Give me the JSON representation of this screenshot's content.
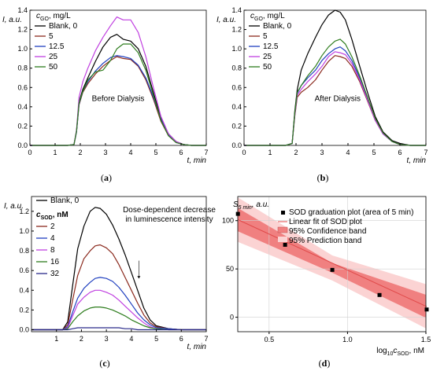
{
  "chart_data": [
    {
      "panel": "(a)",
      "type": "line",
      "xlabel": "t, min",
      "ylabel": "I, a.u.",
      "xlim": [
        0,
        7
      ],
      "ylim": [
        0,
        1.4
      ],
      "xticks": [
        0,
        1,
        2,
        3,
        4,
        5,
        6,
        7
      ],
      "yticks": [
        0.0,
        0.2,
        0.4,
        0.6,
        0.8,
        1.0,
        1.2,
        1.4
      ],
      "xtick_labels": [
        "0",
        "1",
        "2",
        "3",
        "4",
        "5",
        "6",
        "7"
      ],
      "ytick_labels": [
        "0.0",
        "0.2",
        "0.4",
        "0.6",
        "0.8",
        "1.0",
        "1.2",
        "1.4"
      ],
      "legend_title": "cGO, mg/L",
      "legend_position": "top-left",
      "annotation": "Before Dialysis",
      "annotation_color": "#d62728",
      "grid": false,
      "series": [
        {
          "name": "Blank, 0",
          "color": "#000000",
          "x": [
            0,
            1.5,
            1.75,
            1.85,
            1.95,
            2.1,
            2.3,
            2.6,
            2.9,
            3.2,
            3.45,
            3.7,
            4.0,
            4.3,
            4.6,
            4.9,
            5.2,
            5.5,
            5.8,
            6.1,
            6.4,
            6.5,
            7
          ],
          "y": [
            0,
            0,
            0.01,
            0.15,
            0.45,
            0.58,
            0.7,
            0.87,
            1.02,
            1.12,
            1.15,
            1.1,
            1.08,
            1.0,
            0.82,
            0.55,
            0.28,
            0.12,
            0.04,
            0.01,
            0,
            0,
            0
          ]
        },
        {
          "name": "5",
          "color": "#8b2a1e",
          "x": [
            0,
            1.5,
            1.75,
            1.85,
            1.95,
            2.1,
            2.3,
            2.6,
            2.9,
            3.2,
            3.45,
            3.7,
            4.0,
            4.3,
            4.6,
            4.9,
            5.2,
            5.5,
            5.8,
            6.1,
            6.4,
            6.5,
            7
          ],
          "y": [
            0,
            0,
            0.01,
            0.14,
            0.42,
            0.55,
            0.64,
            0.74,
            0.82,
            0.88,
            0.92,
            0.9,
            0.89,
            0.82,
            0.68,
            0.48,
            0.25,
            0.1,
            0.03,
            0.01,
            0,
            0,
            0
          ]
        },
        {
          "name": "12.5",
          "color": "#1f3fbf",
          "x": [
            0,
            1.5,
            1.75,
            1.85,
            1.95,
            2.1,
            2.3,
            2.6,
            2.9,
            3.2,
            3.45,
            3.7,
            4.0,
            4.3,
            4.6,
            4.9,
            5.2,
            5.5,
            5.8,
            6.1,
            6.4,
            6.5,
            7
          ],
          "y": [
            0,
            0,
            0.01,
            0.14,
            0.43,
            0.56,
            0.66,
            0.77,
            0.85,
            0.91,
            0.93,
            0.92,
            0.9,
            0.83,
            0.7,
            0.5,
            0.27,
            0.11,
            0.03,
            0.01,
            0,
            0,
            0
          ]
        },
        {
          "name": "25",
          "color": "#c040e0",
          "x": [
            0,
            1.5,
            1.75,
            1.85,
            1.95,
            2.1,
            2.3,
            2.6,
            2.9,
            3.2,
            3.45,
            3.7,
            4.0,
            4.3,
            4.6,
            4.9,
            5.2,
            5.5,
            5.8,
            6.1,
            6.4,
            6.5,
            7
          ],
          "y": [
            0,
            0,
            0.01,
            0.16,
            0.5,
            0.66,
            0.8,
            0.98,
            1.12,
            1.24,
            1.33,
            1.3,
            1.3,
            1.17,
            0.92,
            0.6,
            0.3,
            0.12,
            0.04,
            0.01,
            0,
            0,
            0
          ]
        },
        {
          "name": "50",
          "color": "#2e7d1e",
          "x": [
            0,
            1.5,
            1.75,
            1.85,
            1.95,
            2.1,
            2.3,
            2.6,
            2.9,
            3.2,
            3.45,
            3.7,
            4.0,
            4.3,
            4.6,
            4.9,
            5.2,
            5.5,
            5.8,
            6.1,
            6.4,
            6.5,
            7
          ],
          "y": [
            0,
            0,
            0.01,
            0.15,
            0.44,
            0.56,
            0.68,
            0.76,
            0.78,
            0.88,
            1.0,
            1.05,
            1.05,
            0.96,
            0.78,
            0.52,
            0.26,
            0.1,
            0.03,
            0.01,
            0,
            0,
            0
          ]
        }
      ]
    },
    {
      "panel": "(b)",
      "type": "line",
      "xlabel": "t, min",
      "ylabel": "I, a.u.",
      "xlim": [
        0,
        7
      ],
      "ylim": [
        0,
        1.4
      ],
      "xticks": [
        0,
        1,
        2,
        3,
        4,
        5,
        6,
        7
      ],
      "yticks": [
        0.0,
        0.2,
        0.4,
        0.6,
        0.8,
        1.0,
        1.2,
        1.4
      ],
      "xtick_labels": [
        "0",
        "1",
        "2",
        "3",
        "4",
        "5",
        "6",
        "7"
      ],
      "ytick_labels": [
        "0.0",
        "0.2",
        "0.4",
        "0.6",
        "0.8",
        "1.0",
        "1.2",
        "1.4"
      ],
      "legend_title": "cGO, mg/L",
      "legend_position": "top-left",
      "annotation": "After Dialysis",
      "annotation_color": "#2020d0",
      "grid": false,
      "series": [
        {
          "name": "Blank, 0",
          "color": "#000000",
          "x": [
            0,
            1.6,
            1.85,
            1.95,
            2.05,
            2.2,
            2.45,
            2.75,
            3.0,
            3.25,
            3.5,
            3.7,
            3.9,
            4.15,
            4.45,
            4.75,
            5.05,
            5.35,
            5.7,
            6.0,
            6.4,
            6.5,
            7
          ],
          "y": [
            0,
            0,
            0.02,
            0.35,
            0.58,
            0.78,
            0.95,
            1.12,
            1.25,
            1.35,
            1.4,
            1.38,
            1.3,
            1.1,
            0.82,
            0.55,
            0.3,
            0.14,
            0.05,
            0.02,
            0,
            0,
            0
          ]
        },
        {
          "name": "5",
          "color": "#8b2a1e",
          "x": [
            0,
            1.6,
            1.85,
            1.95,
            2.05,
            2.2,
            2.45,
            2.75,
            3.0,
            3.25,
            3.5,
            3.7,
            3.9,
            4.15,
            4.45,
            4.75,
            5.05,
            5.35,
            5.7,
            6.0,
            6.4,
            6.5,
            7
          ],
          "y": [
            0,
            0,
            0.02,
            0.3,
            0.5,
            0.55,
            0.6,
            0.68,
            0.78,
            0.87,
            0.93,
            0.92,
            0.9,
            0.82,
            0.66,
            0.46,
            0.26,
            0.12,
            0.04,
            0.01,
            0,
            0,
            0
          ]
        },
        {
          "name": "12.5",
          "color": "#1f3fbf",
          "x": [
            0,
            1.6,
            1.85,
            1.95,
            2.05,
            2.2,
            2.45,
            2.75,
            3.0,
            3.25,
            3.5,
            3.7,
            3.9,
            4.15,
            4.45,
            4.75,
            5.05,
            5.35,
            5.7,
            6.0,
            6.4,
            6.5,
            7
          ],
          "y": [
            0,
            0,
            0.02,
            0.32,
            0.54,
            0.62,
            0.7,
            0.78,
            0.88,
            0.95,
            1.0,
            1.02,
            0.98,
            0.88,
            0.7,
            0.48,
            0.27,
            0.12,
            0.04,
            0.01,
            0,
            0,
            0
          ]
        },
        {
          "name": "25",
          "color": "#c040e0",
          "x": [
            0,
            1.6,
            1.85,
            1.95,
            2.05,
            2.2,
            2.45,
            2.75,
            3.0,
            3.25,
            3.5,
            3.7,
            3.9,
            4.15,
            4.45,
            4.75,
            5.05,
            5.35,
            5.7,
            6.0,
            6.4,
            6.5,
            7
          ],
          "y": [
            0,
            0,
            0.02,
            0.31,
            0.52,
            0.58,
            0.66,
            0.74,
            0.82,
            0.92,
            0.97,
            0.96,
            0.94,
            0.85,
            0.68,
            0.47,
            0.26,
            0.12,
            0.04,
            0.01,
            0,
            0,
            0
          ]
        },
        {
          "name": "50",
          "color": "#2e7d1e",
          "x": [
            0,
            1.6,
            1.85,
            1.95,
            2.05,
            2.2,
            2.45,
            2.75,
            3.0,
            3.25,
            3.5,
            3.7,
            3.9,
            4.15,
            4.45,
            4.75,
            5.05,
            5.35,
            5.7,
            6.0,
            6.4,
            6.5,
            7
          ],
          "y": [
            0,
            0,
            0.02,
            0.33,
            0.55,
            0.62,
            0.72,
            0.82,
            0.93,
            1.02,
            1.08,
            1.1,
            1.05,
            0.92,
            0.72,
            0.5,
            0.28,
            0.13,
            0.04,
            0.01,
            0,
            0,
            0
          ]
        }
      ]
    },
    {
      "panel": "(c)",
      "type": "line",
      "xlabel": "t, min",
      "ylabel": "I, a.u.",
      "xlim": [
        0,
        7
      ],
      "ylim": [
        -0.02,
        1.35
      ],
      "xticks": [
        1,
        2,
        3,
        4,
        5,
        6,
        7
      ],
      "yticks": [
        0.0,
        0.2,
        0.4,
        0.6,
        0.8,
        1.0,
        1.2
      ],
      "xtick_labels": [
        "1",
        "2",
        "3",
        "4",
        "5",
        "6",
        "7"
      ],
      "ytick_labels": [
        "0.0",
        "0.2",
        "0.4",
        "0.6",
        "0.8",
        "1.0",
        "1.2"
      ],
      "legend_title": "cSOD, nM",
      "legend_position": "top-left",
      "annotation": "Dose-dependent decrease in luminescence intensity",
      "annotation_color": "#000000",
      "grid": false,
      "series": [
        {
          "name": "Blank, 0",
          "color": "#000000",
          "x": [
            0,
            1.25,
            1.45,
            1.65,
            1.85,
            2.1,
            2.35,
            2.55,
            2.75,
            3.0,
            3.25,
            3.5,
            3.75,
            4.0,
            4.25,
            4.5,
            4.75,
            5.0,
            5.5,
            6.0,
            6.5,
            7
          ],
          "y": [
            0,
            0,
            0.08,
            0.45,
            0.82,
            1.05,
            1.2,
            1.24,
            1.23,
            1.17,
            1.06,
            0.92,
            0.76,
            0.58,
            0.4,
            0.22,
            0.1,
            0.04,
            0.01,
            0,
            0,
            0
          ]
        },
        {
          "name": "2",
          "color": "#8b2a1e",
          "x": [
            0,
            1.25,
            1.45,
            1.65,
            1.85,
            2.1,
            2.35,
            2.55,
            2.75,
            3.0,
            3.25,
            3.5,
            3.75,
            4.0,
            4.25,
            4.5,
            4.75,
            5.0,
            5.5,
            6.0,
            6.5,
            7
          ],
          "y": [
            0,
            0,
            0.05,
            0.3,
            0.55,
            0.72,
            0.8,
            0.85,
            0.86,
            0.83,
            0.77,
            0.66,
            0.53,
            0.4,
            0.27,
            0.15,
            0.07,
            0.03,
            0.01,
            0,
            0,
            0
          ]
        },
        {
          "name": "4",
          "color": "#1f3fbf",
          "x": [
            0,
            1.25,
            1.45,
            1.65,
            1.85,
            2.1,
            2.35,
            2.55,
            2.75,
            3.0,
            3.25,
            3.5,
            3.75,
            4.0,
            4.25,
            4.5,
            4.75,
            5.0,
            5.5,
            6.0,
            6.5,
            7
          ],
          "y": [
            0,
            0,
            0.03,
            0.18,
            0.32,
            0.42,
            0.48,
            0.52,
            0.53,
            0.52,
            0.49,
            0.43,
            0.35,
            0.26,
            0.17,
            0.1,
            0.05,
            0.02,
            0.01,
            0,
            0,
            0
          ]
        },
        {
          "name": "8",
          "color": "#c040e0",
          "x": [
            0,
            1.25,
            1.45,
            1.65,
            1.85,
            2.1,
            2.35,
            2.55,
            2.75,
            3.0,
            3.25,
            3.5,
            3.75,
            4.0,
            4.25,
            4.5,
            4.75,
            5.0,
            5.5,
            6.0,
            6.5,
            7
          ],
          "y": [
            0,
            0,
            0.02,
            0.14,
            0.26,
            0.33,
            0.38,
            0.4,
            0.4,
            0.38,
            0.35,
            0.3,
            0.24,
            0.18,
            0.12,
            0.07,
            0.03,
            0.01,
            0,
            0,
            0,
            0
          ]
        },
        {
          "name": "16",
          "color": "#2e7d1e",
          "x": [
            0,
            1.25,
            1.45,
            1.65,
            1.85,
            2.1,
            2.35,
            2.55,
            2.75,
            3.0,
            3.25,
            3.5,
            3.75,
            4.0,
            4.25,
            4.5,
            4.75,
            5.0,
            5.5,
            6.0,
            6.5,
            7
          ],
          "y": [
            0,
            0,
            0.01,
            0.08,
            0.14,
            0.19,
            0.22,
            0.23,
            0.23,
            0.22,
            0.2,
            0.17,
            0.14,
            0.1,
            0.07,
            0.04,
            0.02,
            0.01,
            0,
            0,
            0,
            0
          ]
        },
        {
          "name": "32",
          "color": "#2a2a8a",
          "x": [
            0,
            1.25,
            1.45,
            1.65,
            1.85,
            2.1,
            2.35,
            2.55,
            2.75,
            3.0,
            3.25,
            3.5,
            3.75,
            4.0,
            4.25,
            4.5,
            4.75,
            5.0,
            5.5,
            6.0,
            6.5,
            7
          ],
          "y": [
            0,
            0,
            0,
            0.01,
            0.02,
            0.02,
            0.02,
            0.02,
            0.02,
            0.02,
            0.02,
            0.02,
            0.01,
            0.01,
            0,
            0,
            0,
            0,
            0,
            0,
            0,
            0
          ]
        }
      ]
    },
    {
      "panel": "(d)",
      "type": "scatter",
      "xlabel": "log10cSOD, nM",
      "ylabel": "S5 min, a.u.",
      "xlim": [
        0.3,
        1.5
      ],
      "ylim": [
        -15,
        125
      ],
      "xticks": [
        0.5,
        1.0,
        1.5
      ],
      "yticks": [
        0,
        50,
        100
      ],
      "xtick_labels": [
        "0.5",
        "1.0",
        "1.5"
      ],
      "ytick_labels": [
        "0",
        "50",
        "100"
      ],
      "grid": true,
      "legend_position": "top-right",
      "legend": [
        "SOD graduation plot (area of 5 min)",
        "Linear fit of SOD plot",
        "95% Confidence band",
        "95% Prediction band"
      ],
      "points": {
        "x": [
          0.301,
          0.602,
          0.903,
          1.204,
          1.505
        ],
        "y": [
          107,
          75,
          49,
          23,
          8
        ]
      },
      "fit": {
        "x": [
          0.301,
          1.505
        ],
        "y": [
          101,
          11
        ]
      },
      "confidence_band": {
        "x": [
          0.301,
          0.903,
          1.505
        ],
        "upper": [
          113,
          56,
          23
        ],
        "lower": [
          89,
          46,
          -1
        ]
      },
      "prediction_band": {
        "x": [
          0.301,
          0.903,
          1.505
        ],
        "upper": [
          124,
          64,
          34
        ],
        "lower": [
          78,
          38,
          -12
        ]
      },
      "colors": {
        "line": "#e04a4a",
        "confidence": "#f08080",
        "prediction": "#fbd3d3",
        "points": "#000000"
      }
    }
  ]
}
